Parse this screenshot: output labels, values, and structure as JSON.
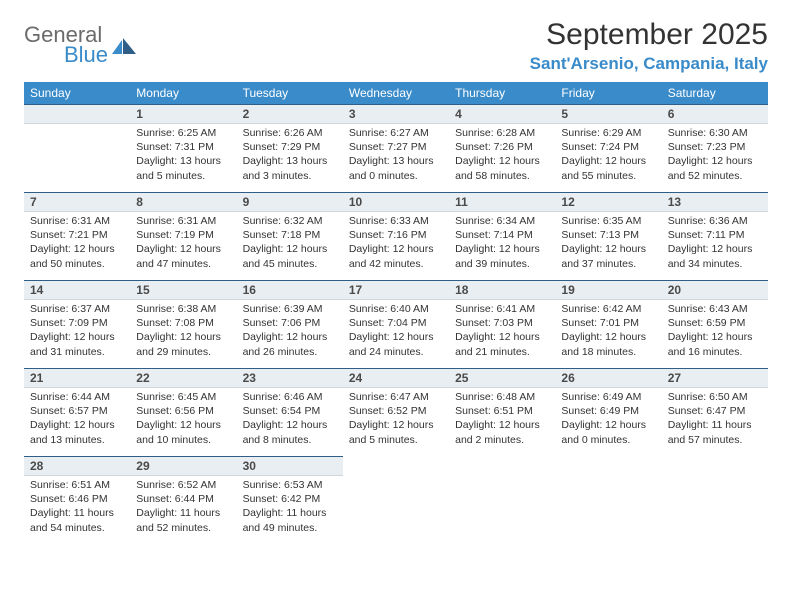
{
  "brand": {
    "main": "General",
    "sub": "Blue"
  },
  "title": "September 2025",
  "location": "Sant'Arsenio, Campania, Italy",
  "colors": {
    "header_bg": "#3a8bc9",
    "header_text": "#ffffff",
    "daynum_bg": "#e9eef2",
    "daynum_border_top": "#2f5f87",
    "brand_gray": "#6b6b6b",
    "brand_blue": "#3a8bc9"
  },
  "weekdays": [
    "Sunday",
    "Monday",
    "Tuesday",
    "Wednesday",
    "Thursday",
    "Friday",
    "Saturday"
  ],
  "weeks": [
    [
      {
        "empty": true,
        "first": true
      },
      {
        "day": "1",
        "sunrise": "6:25 AM",
        "sunset": "7:31 PM",
        "daylight": "13 hours and 5 minutes."
      },
      {
        "day": "2",
        "sunrise": "6:26 AM",
        "sunset": "7:29 PM",
        "daylight": "13 hours and 3 minutes."
      },
      {
        "day": "3",
        "sunrise": "6:27 AM",
        "sunset": "7:27 PM",
        "daylight": "13 hours and 0 minutes."
      },
      {
        "day": "4",
        "sunrise": "6:28 AM",
        "sunset": "7:26 PM",
        "daylight": "12 hours and 58 minutes."
      },
      {
        "day": "5",
        "sunrise": "6:29 AM",
        "sunset": "7:24 PM",
        "daylight": "12 hours and 55 minutes."
      },
      {
        "day": "6",
        "sunrise": "6:30 AM",
        "sunset": "7:23 PM",
        "daylight": "12 hours and 52 minutes."
      }
    ],
    [
      {
        "day": "7",
        "sunrise": "6:31 AM",
        "sunset": "7:21 PM",
        "daylight": "12 hours and 50 minutes."
      },
      {
        "day": "8",
        "sunrise": "6:31 AM",
        "sunset": "7:19 PM",
        "daylight": "12 hours and 47 minutes."
      },
      {
        "day": "9",
        "sunrise": "6:32 AM",
        "sunset": "7:18 PM",
        "daylight": "12 hours and 45 minutes."
      },
      {
        "day": "10",
        "sunrise": "6:33 AM",
        "sunset": "7:16 PM",
        "daylight": "12 hours and 42 minutes."
      },
      {
        "day": "11",
        "sunrise": "6:34 AM",
        "sunset": "7:14 PM",
        "daylight": "12 hours and 39 minutes."
      },
      {
        "day": "12",
        "sunrise": "6:35 AM",
        "sunset": "7:13 PM",
        "daylight": "12 hours and 37 minutes."
      },
      {
        "day": "13",
        "sunrise": "6:36 AM",
        "sunset": "7:11 PM",
        "daylight": "12 hours and 34 minutes."
      }
    ],
    [
      {
        "day": "14",
        "sunrise": "6:37 AM",
        "sunset": "7:09 PM",
        "daylight": "12 hours and 31 minutes."
      },
      {
        "day": "15",
        "sunrise": "6:38 AM",
        "sunset": "7:08 PM",
        "daylight": "12 hours and 29 minutes."
      },
      {
        "day": "16",
        "sunrise": "6:39 AM",
        "sunset": "7:06 PM",
        "daylight": "12 hours and 26 minutes."
      },
      {
        "day": "17",
        "sunrise": "6:40 AM",
        "sunset": "7:04 PM",
        "daylight": "12 hours and 24 minutes."
      },
      {
        "day": "18",
        "sunrise": "6:41 AM",
        "sunset": "7:03 PM",
        "daylight": "12 hours and 21 minutes."
      },
      {
        "day": "19",
        "sunrise": "6:42 AM",
        "sunset": "7:01 PM",
        "daylight": "12 hours and 18 minutes."
      },
      {
        "day": "20",
        "sunrise": "6:43 AM",
        "sunset": "6:59 PM",
        "daylight": "12 hours and 16 minutes."
      }
    ],
    [
      {
        "day": "21",
        "sunrise": "6:44 AM",
        "sunset": "6:57 PM",
        "daylight": "12 hours and 13 minutes."
      },
      {
        "day": "22",
        "sunrise": "6:45 AM",
        "sunset": "6:56 PM",
        "daylight": "12 hours and 10 minutes."
      },
      {
        "day": "23",
        "sunrise": "6:46 AM",
        "sunset": "6:54 PM",
        "daylight": "12 hours and 8 minutes."
      },
      {
        "day": "24",
        "sunrise": "6:47 AM",
        "sunset": "6:52 PM",
        "daylight": "12 hours and 5 minutes."
      },
      {
        "day": "25",
        "sunrise": "6:48 AM",
        "sunset": "6:51 PM",
        "daylight": "12 hours and 2 minutes."
      },
      {
        "day": "26",
        "sunrise": "6:49 AM",
        "sunset": "6:49 PM",
        "daylight": "12 hours and 0 minutes."
      },
      {
        "day": "27",
        "sunrise": "6:50 AM",
        "sunset": "6:47 PM",
        "daylight": "11 hours and 57 minutes."
      }
    ],
    [
      {
        "day": "28",
        "sunrise": "6:51 AM",
        "sunset": "6:46 PM",
        "daylight": "11 hours and 54 minutes."
      },
      {
        "day": "29",
        "sunrise": "6:52 AM",
        "sunset": "6:44 PM",
        "daylight": "11 hours and 52 minutes."
      },
      {
        "day": "30",
        "sunrise": "6:53 AM",
        "sunset": "6:42 PM",
        "daylight": "11 hours and 49 minutes."
      },
      {
        "empty": true
      },
      {
        "empty": true
      },
      {
        "empty": true
      },
      {
        "empty": true
      }
    ]
  ],
  "labels": {
    "sunrise_prefix": "Sunrise: ",
    "sunset_prefix": "Sunset: ",
    "daylight_prefix": "Daylight: "
  }
}
